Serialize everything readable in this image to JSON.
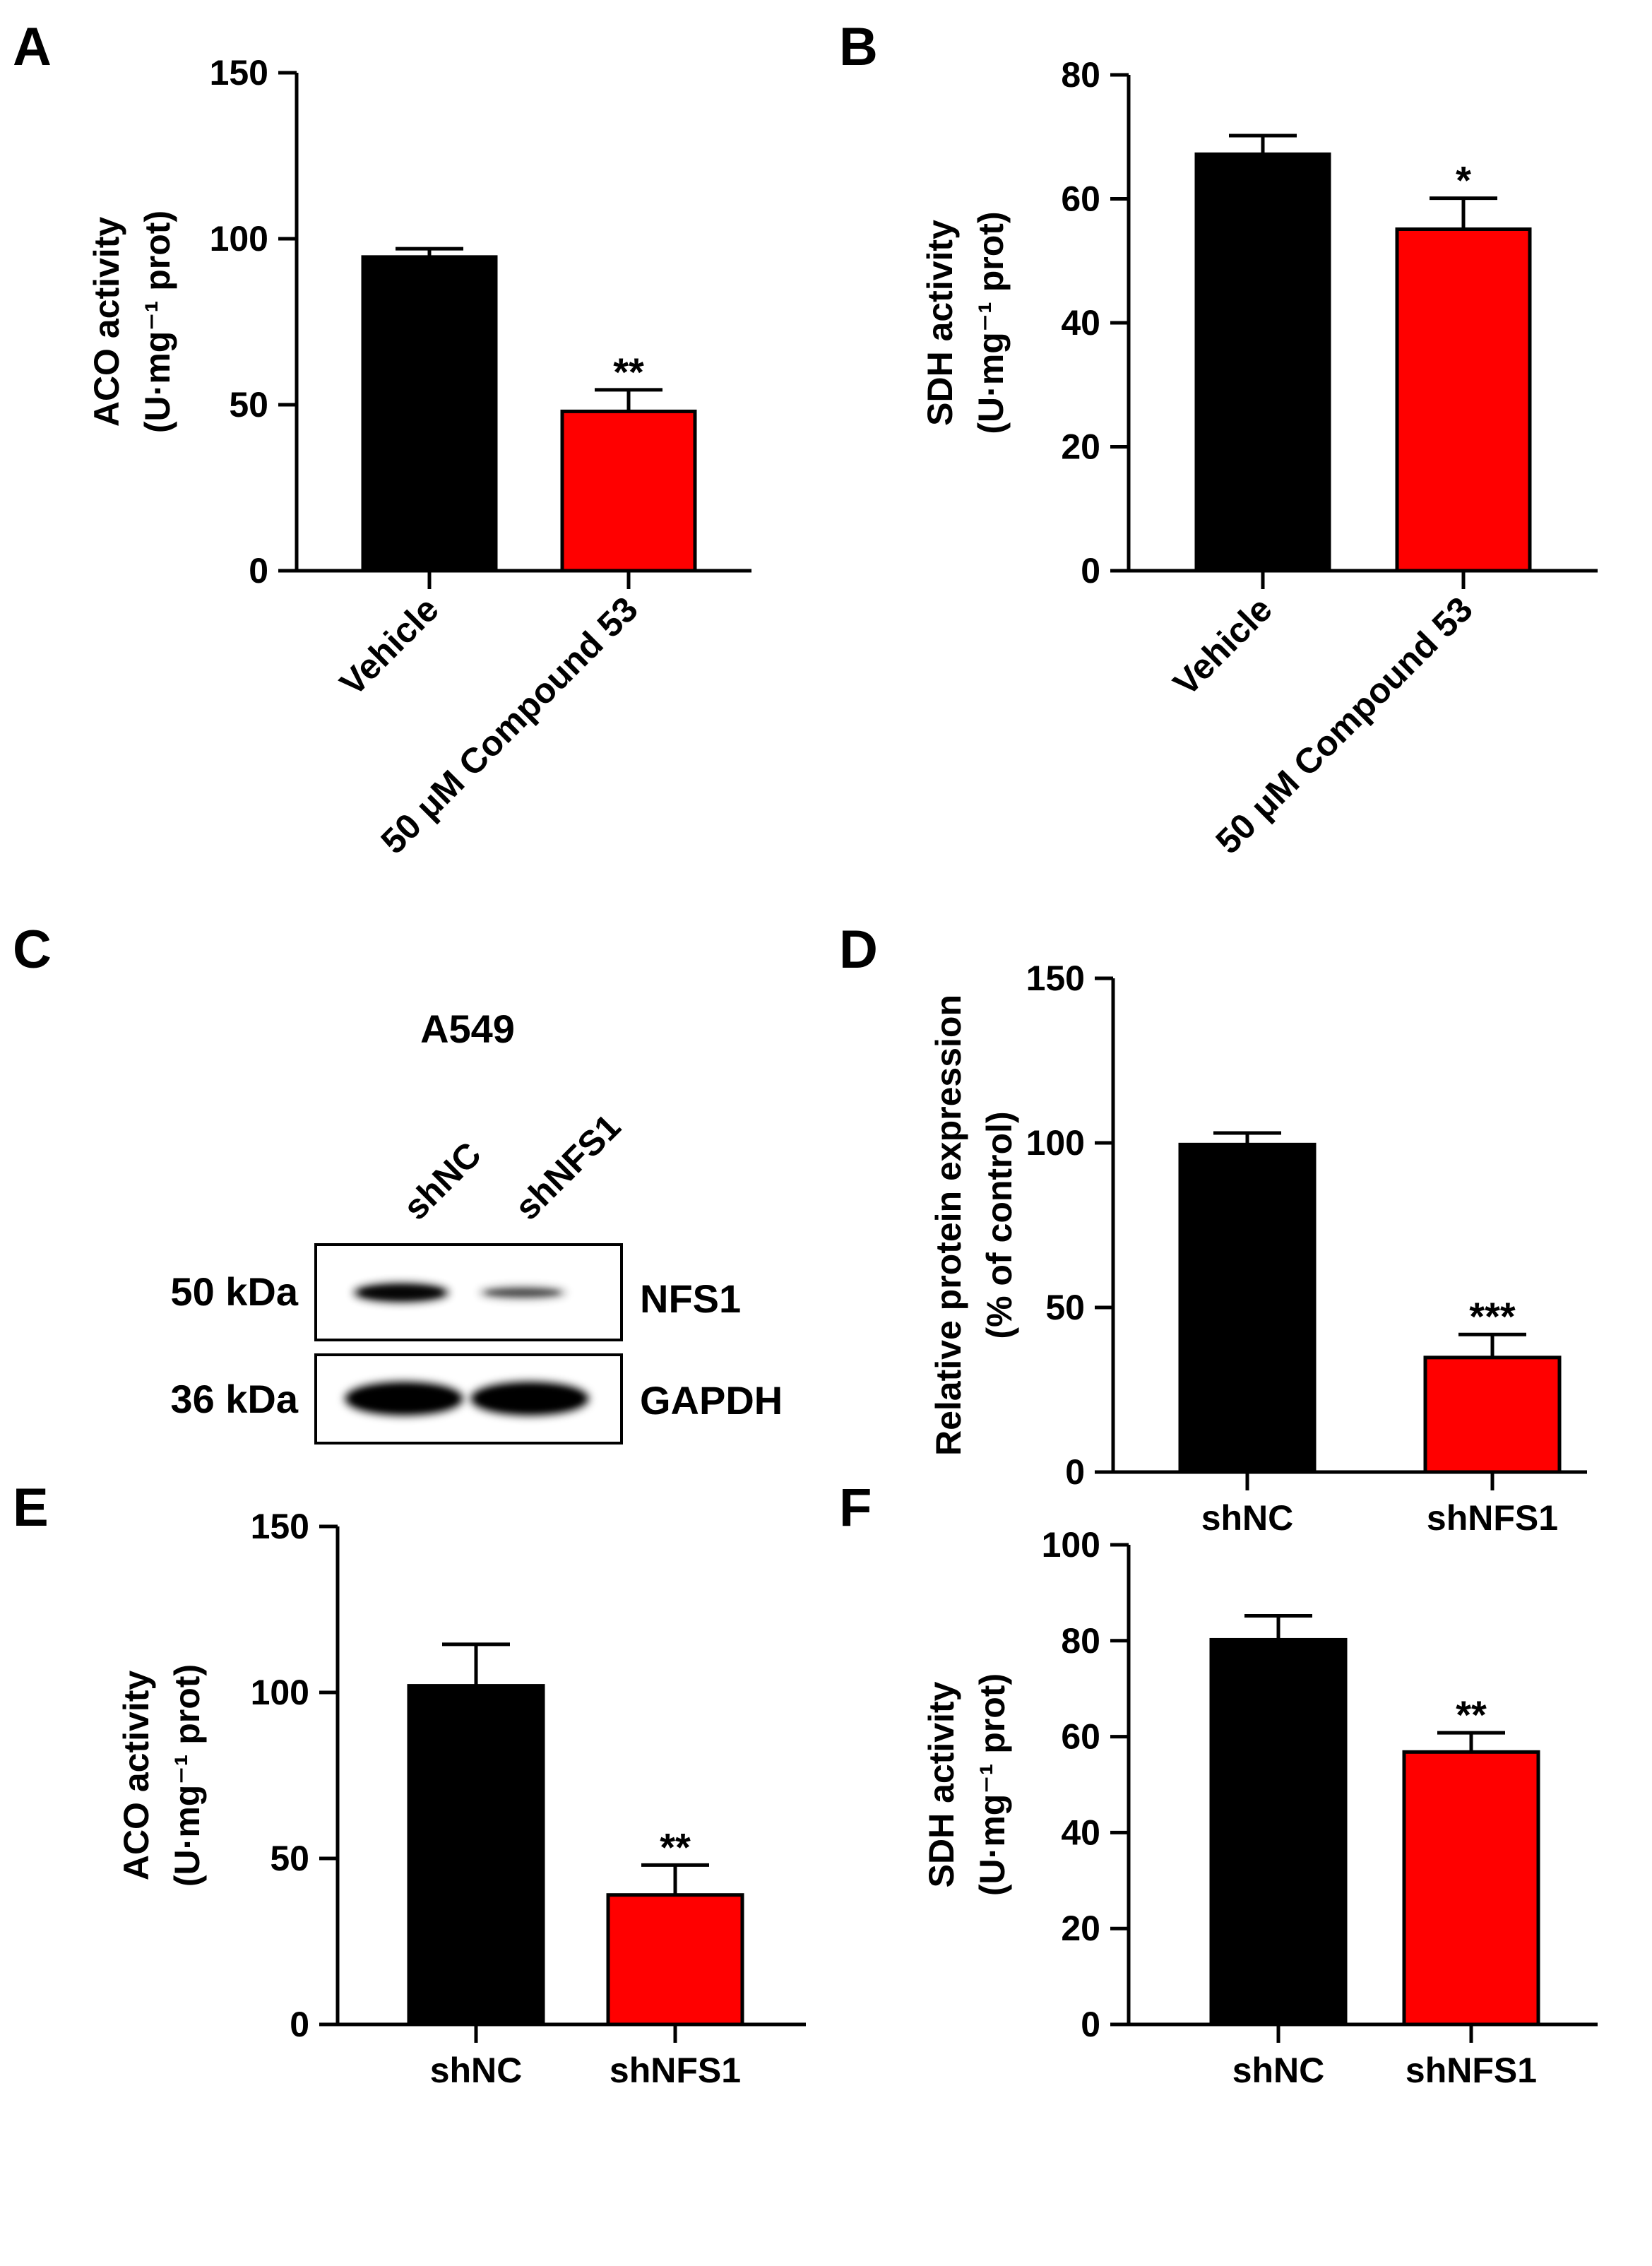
{
  "chart_data": [
    {
      "panel": "A",
      "type": "bar",
      "categories": [
        "Vehicle",
        "50 μM Compound 53"
      ],
      "values": [
        94.5,
        48
      ],
      "errors": [
        2.5,
        6.5
      ],
      "colors": [
        "#000000",
        "#ff0000"
      ],
      "significance": [
        "",
        "**"
      ],
      "ylabel_line1": "ACO activity",
      "ylabel_line2": "(U·mg⁻¹ prot)",
      "ylim": [
        0,
        150
      ],
      "yticks": [
        "0",
        "50",
        "100",
        "150"
      ],
      "rotated_labels": true
    },
    {
      "panel": "B",
      "type": "bar",
      "categories": [
        "Vehicle",
        "50 μM Compound 53"
      ],
      "values": [
        67.2,
        55.1
      ],
      "errors": [
        3.0,
        5.0
      ],
      "colors": [
        "#000000",
        "#ff0000"
      ],
      "significance": [
        "",
        "*"
      ],
      "ylabel_line1": "SDH activity",
      "ylabel_line2": "(U·mg⁻¹ prot)",
      "ylim": [
        0,
        80
      ],
      "yticks": [
        "0",
        "20",
        "40",
        "60",
        "80"
      ],
      "rotated_labels": true
    },
    {
      "panel": "D",
      "type": "bar",
      "categories": [
        "shNC",
        "shNFS1"
      ],
      "values": [
        99.5,
        34.8
      ],
      "errors": [
        3.5,
        7.0
      ],
      "colors": [
        "#000000",
        "#ff0000"
      ],
      "significance": [
        "",
        "***"
      ],
      "ylabel_line1": "Relative protein expression",
      "ylabel_line2": "(% of control)",
      "ylim": [
        0,
        150
      ],
      "yticks": [
        "0",
        "50",
        "100",
        "150"
      ],
      "rotated_labels": false
    },
    {
      "panel": "E",
      "type": "bar",
      "categories": [
        "shNC",
        "shNFS1"
      ],
      "values": [
        102,
        39
      ],
      "errors": [
        12.5,
        9.0
      ],
      "colors": [
        "#000000",
        "#ff0000"
      ],
      "significance": [
        "",
        "**"
      ],
      "ylabel_line1": "ACO activity",
      "ylabel_line2": "(U·mg⁻¹ prot)",
      "ylim": [
        0,
        150
      ],
      "yticks": [
        "0",
        "50",
        "100",
        "150"
      ],
      "rotated_labels": false
    },
    {
      "panel": "F",
      "type": "bar",
      "categories": [
        "shNC",
        "shNFS1"
      ],
      "values": [
        80.2,
        56.8
      ],
      "errors": [
        5.0,
        4.0
      ],
      "colors": [
        "#000000",
        "#ff0000"
      ],
      "significance": [
        "",
        "**"
      ],
      "ylabel_line1": "SDH activity",
      "ylabel_line2": "(U·mg⁻¹ prot)",
      "ylim": [
        0,
        100
      ],
      "yticks": [
        "0",
        "20",
        "40",
        "60",
        "80",
        "100"
      ],
      "rotated_labels": false
    }
  ],
  "western_blot": {
    "panel": "C",
    "cell_line": "A549",
    "lanes": [
      "shNC",
      "shNFS1"
    ],
    "rows": [
      {
        "mw": "50 kDa",
        "protein": "NFS1",
        "intensities": [
          0.85,
          0.45
        ]
      },
      {
        "mw": "36 kDa",
        "protein": "GAPDH",
        "intensities": [
          1.0,
          1.0
        ]
      }
    ]
  }
}
